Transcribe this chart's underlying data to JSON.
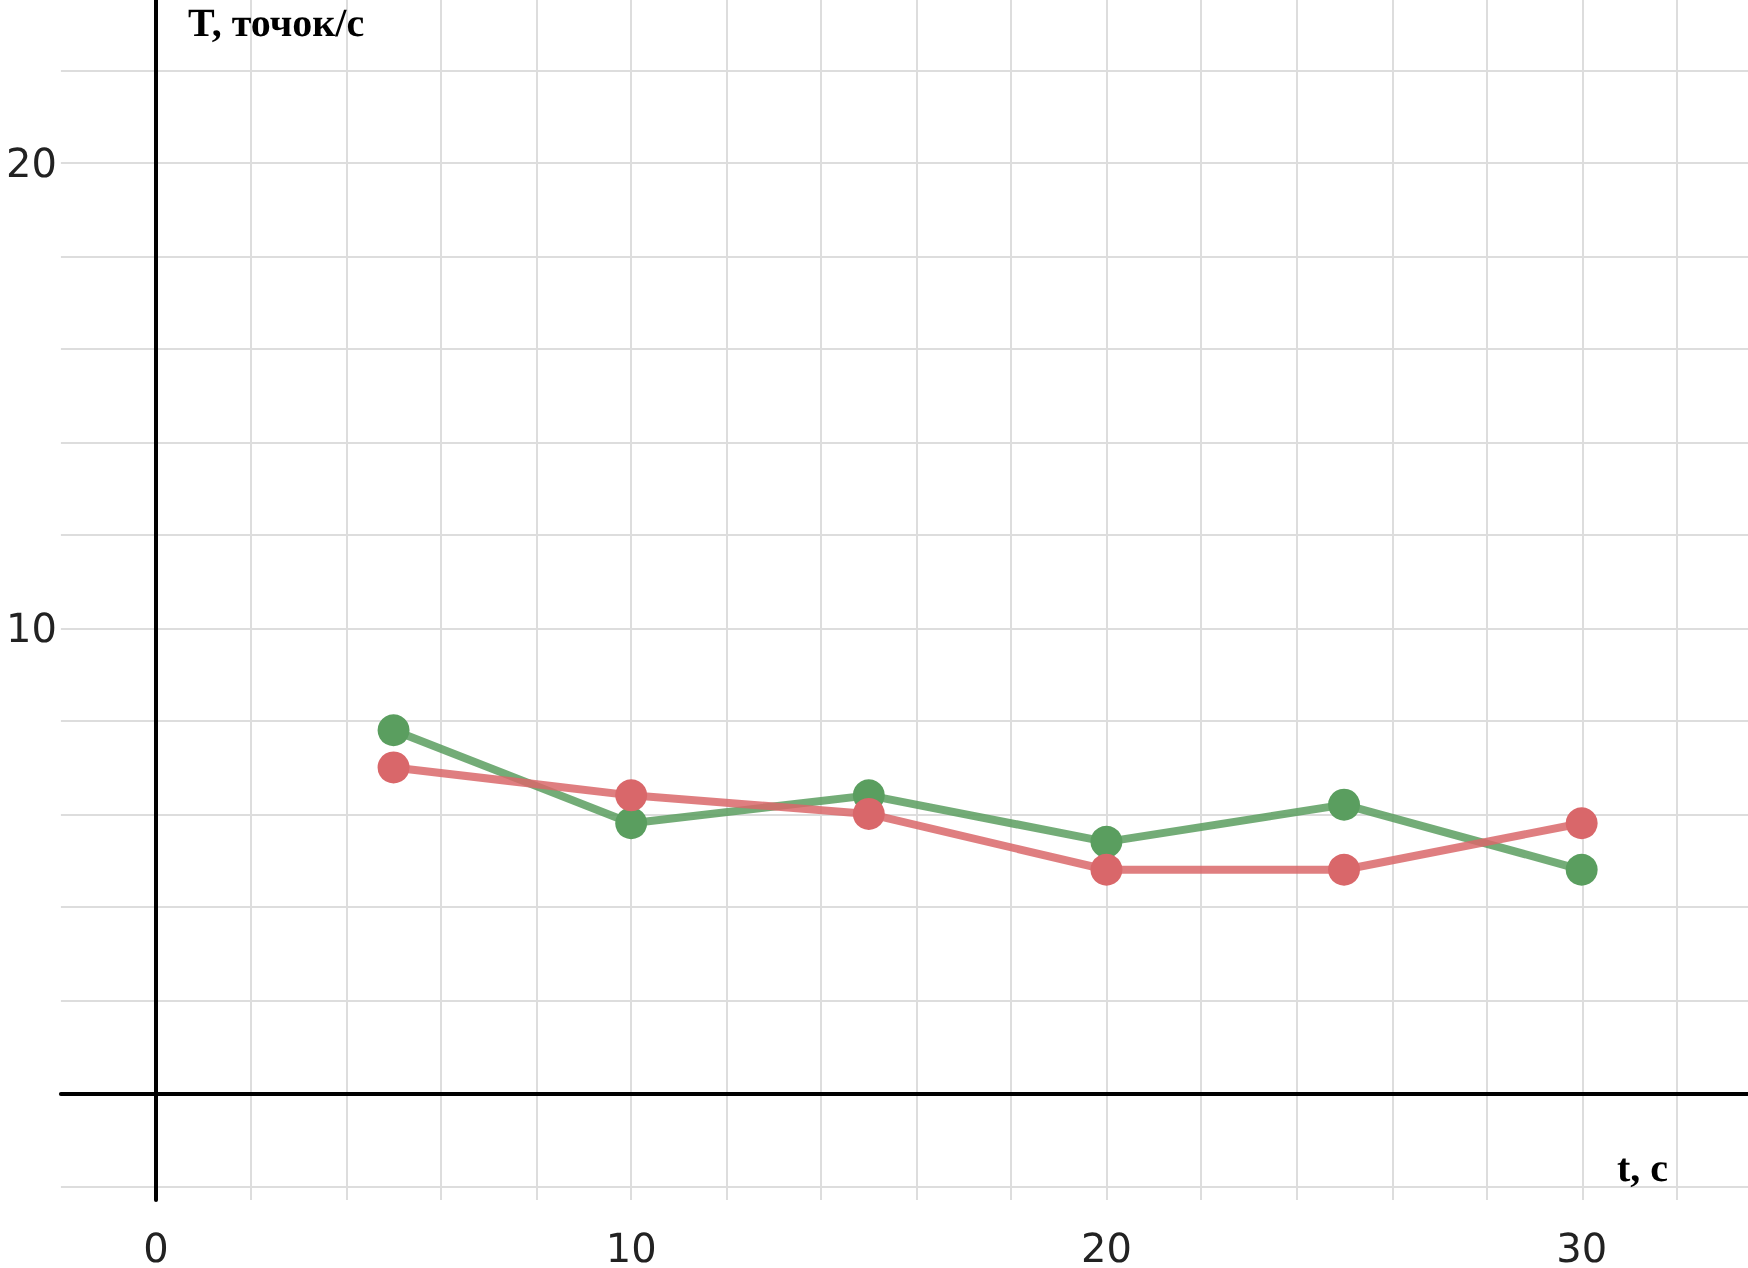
{
  "chart_data": {
    "type": "line",
    "xlabel": "t, с",
    "ylabel": "T, точок/с",
    "x": [
      5,
      10,
      15,
      20,
      25,
      30
    ],
    "series": [
      {
        "color": "#5a9e5f",
        "values": [
          7.8,
          5.8,
          6.4,
          5.4,
          6.2,
          4.8
        ]
      },
      {
        "color": "#d9676a",
        "values": [
          7.0,
          6.4,
          6.0,
          4.8,
          4.8,
          5.8
        ]
      }
    ],
    "xlim": [
      -2,
      33.5
    ],
    "ylim": [
      -2.3,
      23.5
    ],
    "xticks": [
      0,
      {
        "value": 2,
        "label": null
      },
      {
        "value": 4,
        "label": null
      },
      {
        "value": 6,
        "label": null
      },
      {
        "value": 8,
        "label": null
      },
      10,
      {
        "value": 12,
        "label": null
      },
      {
        "value": 14,
        "label": null
      },
      {
        "value": 16,
        "label": null
      },
      {
        "value": 18,
        "label": null
      },
      20,
      {
        "value": 22,
        "label": null
      },
      {
        "value": 24,
        "label": null
      },
      {
        "value": 26,
        "label": null
      },
      {
        "value": 28,
        "label": null
      },
      30,
      {
        "value": 32,
        "label": null
      }
    ],
    "yticks": [
      {
        "value": -2,
        "label": null
      },
      {
        "value": 2,
        "label": null
      },
      {
        "value": 4,
        "label": null
      },
      {
        "value": 6,
        "label": null
      },
      {
        "value": 8,
        "label": null
      },
      10,
      {
        "value": 12,
        "label": null
      },
      {
        "value": 14,
        "label": null
      },
      {
        "value": 16,
        "label": null
      },
      {
        "value": 18,
        "label": null
      },
      20,
      {
        "value": 22,
        "label": null
      }
    ],
    "grid": true,
    "marker": "circle",
    "line_style": "solid"
  }
}
